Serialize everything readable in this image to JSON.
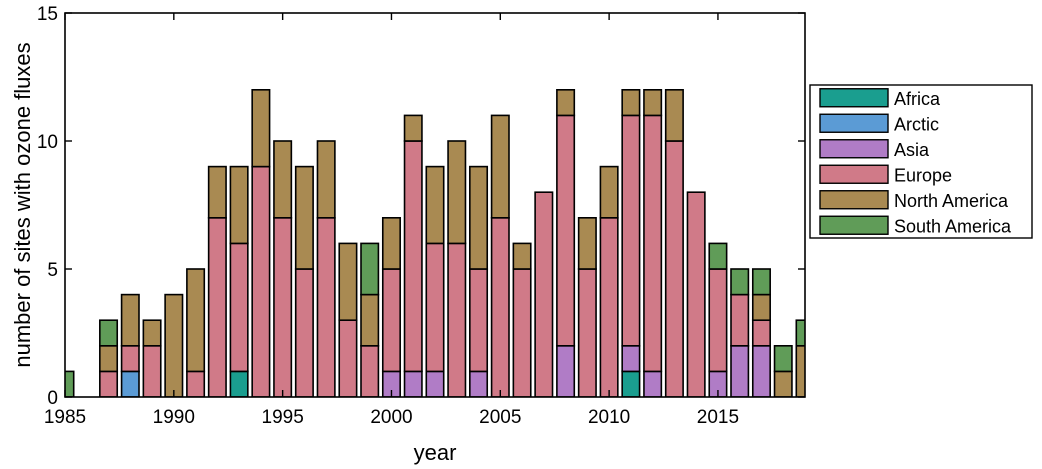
{
  "chart_data": {
    "type": "bar",
    "stacked": true,
    "xlabel": "year",
    "ylabel": "number of sites with ozone fluxes",
    "xlim": [
      1985,
      2019
    ],
    "ylim": [
      0,
      15
    ],
    "x_ticks": [
      1985,
      1990,
      1995,
      2000,
      2005,
      2010,
      2015
    ],
    "y_ticks": [
      0,
      5,
      10,
      15
    ],
    "grid": false,
    "legend_position": "right",
    "categories": [
      1985,
      1986,
      1987,
      1988,
      1989,
      1990,
      1991,
      1992,
      1993,
      1994,
      1995,
      1996,
      1997,
      1998,
      1999,
      2000,
      2001,
      2002,
      2003,
      2004,
      2005,
      2006,
      2007,
      2008,
      2009,
      2010,
      2011,
      2012,
      2013,
      2014,
      2015,
      2016,
      2017,
      2018,
      2019
    ],
    "series": [
      {
        "name": "Africa",
        "color": "#1a9e8f",
        "values": [
          0,
          0,
          0,
          0,
          0,
          0,
          0,
          0,
          1,
          0,
          0,
          0,
          0,
          0,
          0,
          0,
          0,
          0,
          0,
          0,
          0,
          0,
          0,
          0,
          0,
          0,
          1,
          0,
          0,
          0,
          0,
          0,
          0,
          0,
          0
        ]
      },
      {
        "name": "Arctic",
        "color": "#5b9bd5",
        "values": [
          0,
          0,
          0,
          1,
          0,
          0,
          0,
          0,
          0,
          0,
          0,
          0,
          0,
          0,
          0,
          0,
          0,
          0,
          0,
          0,
          0,
          0,
          0,
          0,
          0,
          0,
          0,
          0,
          0,
          0,
          0,
          0,
          0,
          0,
          0
        ]
      },
      {
        "name": "Asia",
        "color": "#b07cc6",
        "values": [
          0,
          0,
          0,
          0,
          0,
          0,
          0,
          0,
          0,
          0,
          0,
          0,
          0,
          0,
          0,
          1,
          1,
          1,
          0,
          1,
          0,
          0,
          0,
          2,
          0,
          0,
          1,
          1,
          0,
          0,
          1,
          2,
          2,
          0,
          0
        ]
      },
      {
        "name": "Europe",
        "color": "#d07a88",
        "values": [
          0,
          0,
          1,
          1,
          2,
          0,
          1,
          7,
          5,
          9,
          7,
          5,
          7,
          3,
          2,
          4,
          9,
          5,
          6,
          4,
          7,
          5,
          8,
          9,
          5,
          7,
          9,
          10,
          10,
          8,
          4,
          2,
          1,
          0,
          0
        ]
      },
      {
        "name": "North America",
        "color": "#a98a52",
        "values": [
          0,
          0,
          1,
          2,
          1,
          4,
          4,
          2,
          3,
          3,
          3,
          4,
          3,
          3,
          2,
          2,
          1,
          3,
          4,
          4,
          4,
          1,
          0,
          1,
          2,
          2,
          1,
          1,
          2,
          0,
          0,
          0,
          1,
          1,
          2
        ]
      },
      {
        "name": "South America",
        "color": "#609c58",
        "values": [
          1,
          0,
          1,
          0,
          0,
          0,
          0,
          0,
          0,
          0,
          0,
          0,
          0,
          0,
          2,
          0,
          0,
          0,
          0,
          0,
          0,
          0,
          0,
          0,
          0,
          0,
          0,
          0,
          0,
          0,
          1,
          1,
          1,
          1,
          1
        ]
      }
    ]
  }
}
